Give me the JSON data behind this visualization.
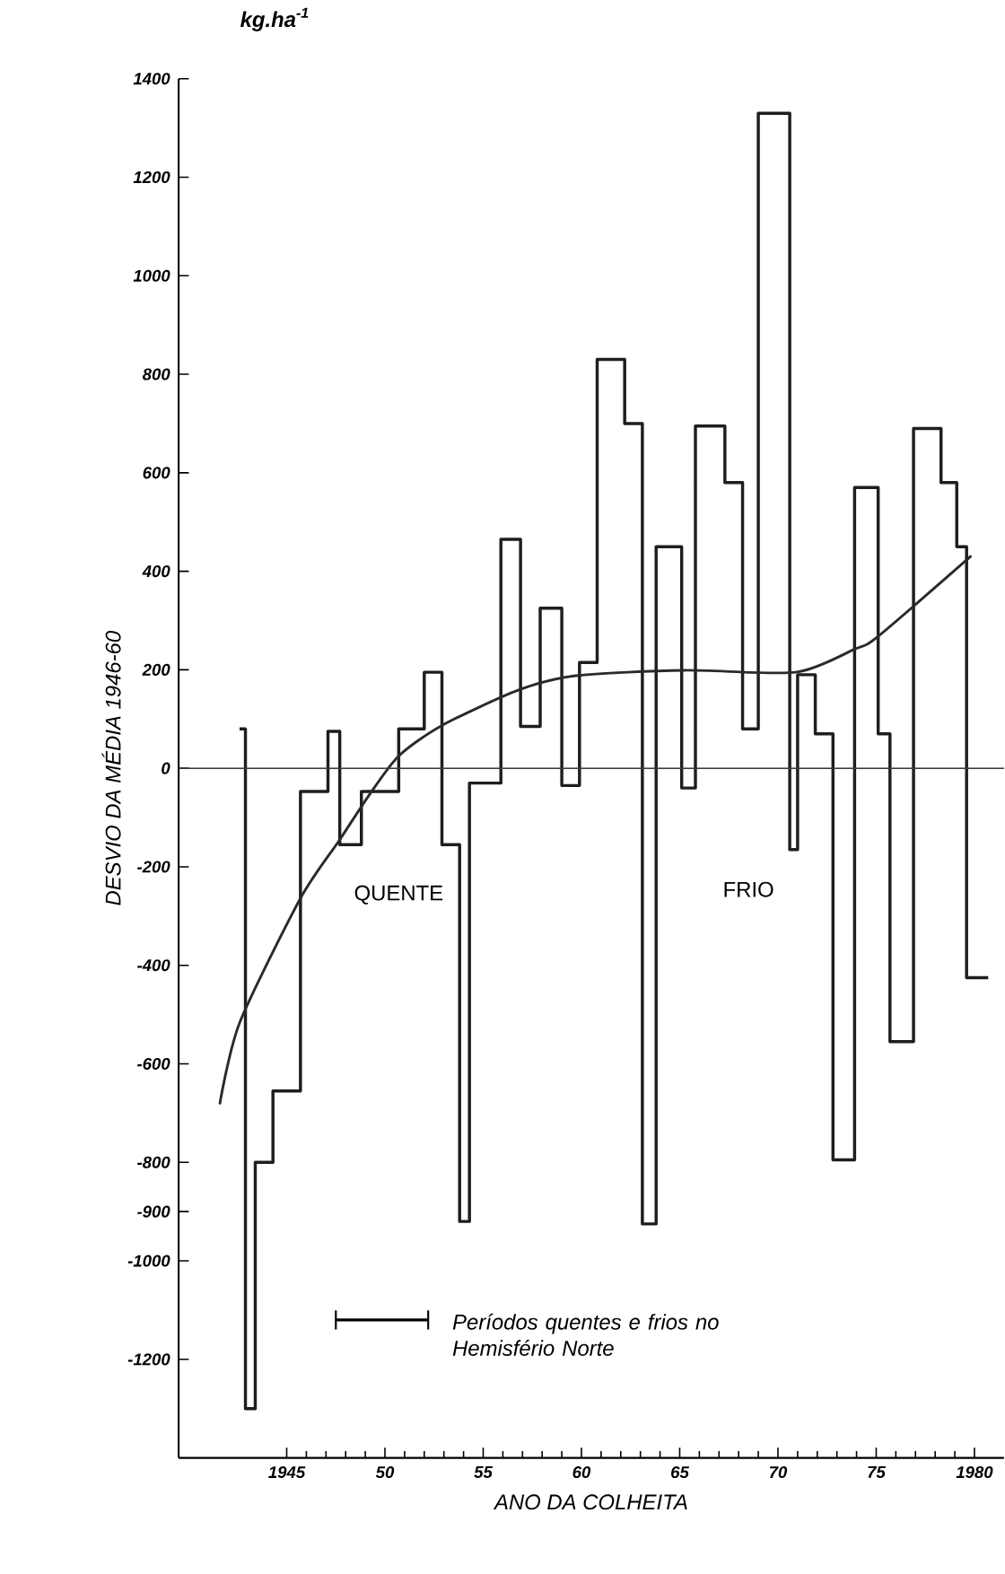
{
  "chart_data": {
    "type": "step",
    "xlabel": "ANO DA COLHEITA",
    "ylabel": "DESVIO DA MÉDIA 1946-60",
    "annotations": [
      "kg.ha$^{-1}$",
      "QUENTE",
      "FRIO",
      "Períodos quentes e frios no Hemisfério Norte"
    ],
    "series": [
      {
        "color": "#1e1e1e",
        "x": [
          1942.6,
          1942.9,
          1943.4,
          1944.3,
          1945.7,
          1947.1,
          1947.7,
          1948.8,
          1950.7,
          1952.0,
          1952.9,
          1953.8,
          1954.3,
          1955.9,
          1956.9,
          1957.9,
          1959.0,
          1959.9,
          1960.8,
          1962.2,
          1963.1,
          1963.8,
          1965.1,
          1965.8,
          1967.3,
          1968.2,
          1969.0,
          1970.6,
          1971.0,
          1971.9,
          1972.8,
          1973.9,
          1975.1,
          1975.7,
          1976.9,
          1978.3,
          1979.1,
          1979.6,
          1980.7
        ],
        "values": [
          80,
          -1300,
          -800,
          -655,
          -47,
          75,
          -155,
          -47,
          80,
          195,
          -155,
          -920,
          -30,
          465,
          85,
          325,
          -35,
          215,
          830,
          700,
          -925,
          450,
          -40,
          695,
          580,
          80,
          1330,
          -165,
          190,
          70,
          -795,
          570,
          70,
          -555,
          690,
          580,
          450,
          -425,
          -425
        ]
      },
      {
        "type": "line",
        "color": "#2a2a2a",
        "x": [
          1941.6,
          1942.6,
          1945.7,
          1947.7,
          1949.2,
          1950.7,
          1952.9,
          1956.8,
          1959.7,
          1965.2,
          1970.9,
          1973.9,
          1975.1,
          1979.8
        ],
        "values": [
          -680,
          -517,
          -264,
          -145,
          -54,
          25,
          87,
          159,
          188,
          199,
          195,
          242,
          268,
          430
        ]
      }
    ],
    "xlim": [
      1939.5,
      1981.5
    ],
    "ylim": [
      -1400,
      1400
    ],
    "xticks": [
      1945,
      {
        "value": 1950,
        "label": "50"
      },
      {
        "value": 1955,
        "label": "55"
      },
      {
        "value": 1960,
        "label": "60"
      },
      {
        "value": 1965,
        "label": "65"
      },
      {
        "value": 1970,
        "label": "70"
      },
      {
        "value": 1975,
        "label": "75"
      },
      1980
    ],
    "yticks": [
      1400,
      1200,
      1000,
      800,
      600,
      400,
      200,
      0,
      -200,
      -400,
      -600,
      -800,
      -900,
      -1000,
      -1200
    ],
    "ref_lines": [
      {
        "axis": "y",
        "value": 0,
        "color": "#3a3a3a"
      }
    ]
  }
}
